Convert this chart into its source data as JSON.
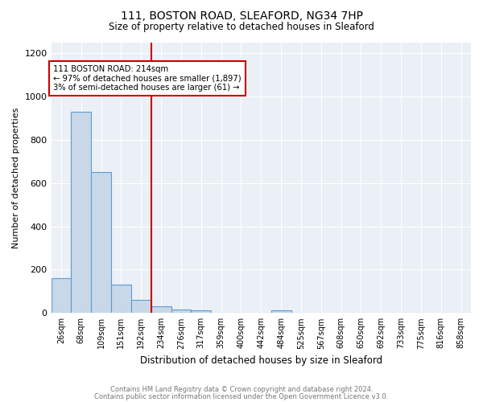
{
  "title1": "111, BOSTON ROAD, SLEAFORD, NG34 7HP",
  "title2": "Size of property relative to detached houses in Sleaford",
  "xlabel": "Distribution of detached houses by size in Sleaford",
  "ylabel": "Number of detached properties",
  "bin_labels": [
    "26sqm",
    "68sqm",
    "109sqm",
    "151sqm",
    "192sqm",
    "234sqm",
    "276sqm",
    "317sqm",
    "359sqm",
    "400sqm",
    "442sqm",
    "484sqm",
    "525sqm",
    "567sqm",
    "608sqm",
    "650sqm",
    "692sqm",
    "733sqm",
    "775sqm",
    "816sqm",
    "858sqm"
  ],
  "bar_heights": [
    160,
    930,
    650,
    130,
    60,
    30,
    15,
    12,
    0,
    0,
    0,
    12,
    0,
    0,
    0,
    0,
    0,
    0,
    0,
    0,
    0
  ],
  "bar_color": "#c8d8e8",
  "bar_edge_color": "#5b9bd5",
  "vline_color": "#cc0000",
  "annotation_line1": "111 BOSTON ROAD: 214sqm",
  "annotation_line2": "← 97% of detached houses are smaller (1,897)",
  "annotation_line3": "3% of semi-detached houses are larger (61) →",
  "annotation_box_color": "#ffffff",
  "annotation_box_edge": "#cc0000",
  "ylim": [
    0,
    1250
  ],
  "yticks": [
    0,
    200,
    400,
    600,
    800,
    1000,
    1200
  ],
  "footer1": "Contains HM Land Registry data © Crown copyright and database right 2024.",
  "footer2": "Contains public sector information licensed under the Open Government Licence v3.0.",
  "plot_bg_color": "#eaf0f6"
}
